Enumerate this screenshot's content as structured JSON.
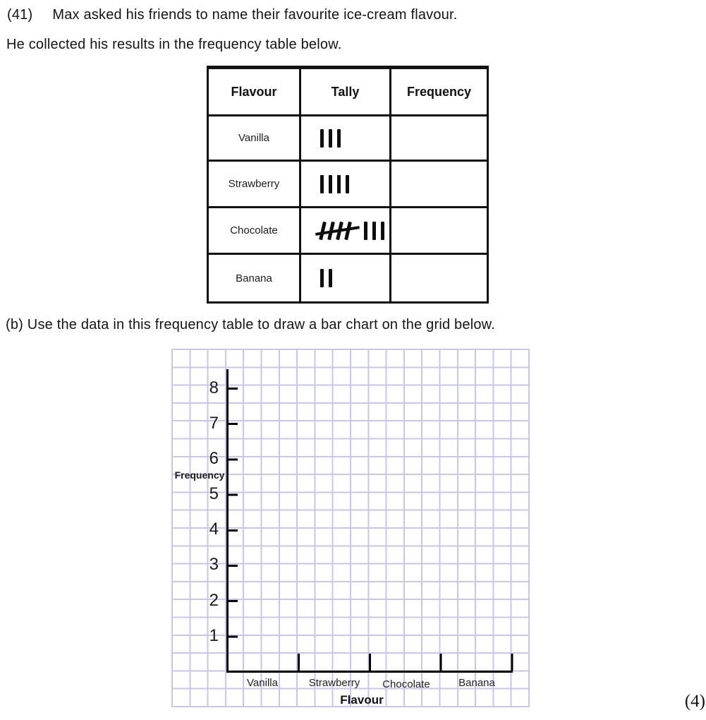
{
  "question": {
    "number": "(41)",
    "intro": "Max asked his friends to name their favourite ice-cream flavour.",
    "line2": "He collected his results in the frequency table below.",
    "part_b": "(b) Use the data in this frequency table to draw a bar chart on the grid below.",
    "marks": "(4)"
  },
  "table": {
    "headers": [
      "Flavour",
      "Tally",
      "Frequency"
    ],
    "rows": [
      {
        "flavour": "Vanilla",
        "tally": 3,
        "frequency": ""
      },
      {
        "flavour": "Strawberry",
        "tally": 4,
        "frequency": ""
      },
      {
        "flavour": "Chocolate",
        "tally": 8,
        "frequency": ""
      },
      {
        "flavour": "Banana",
        "tally": 2,
        "frequency": ""
      }
    ]
  },
  "chart_data": {
    "type": "bar",
    "state": "empty grid — bars not drawn yet",
    "categories": [
      "Vanilla",
      "Strawberry",
      "Chocolate",
      "Banana"
    ],
    "values": [],
    "xlabel": "Flavour",
    "ylabel": "Frequency",
    "yticks": [
      "8",
      "7",
      "6",
      "5",
      "4",
      "3",
      "2",
      "1"
    ],
    "ylim": [
      0,
      8
    ],
    "grid": true,
    "grid_color": "#c9c6ec"
  }
}
